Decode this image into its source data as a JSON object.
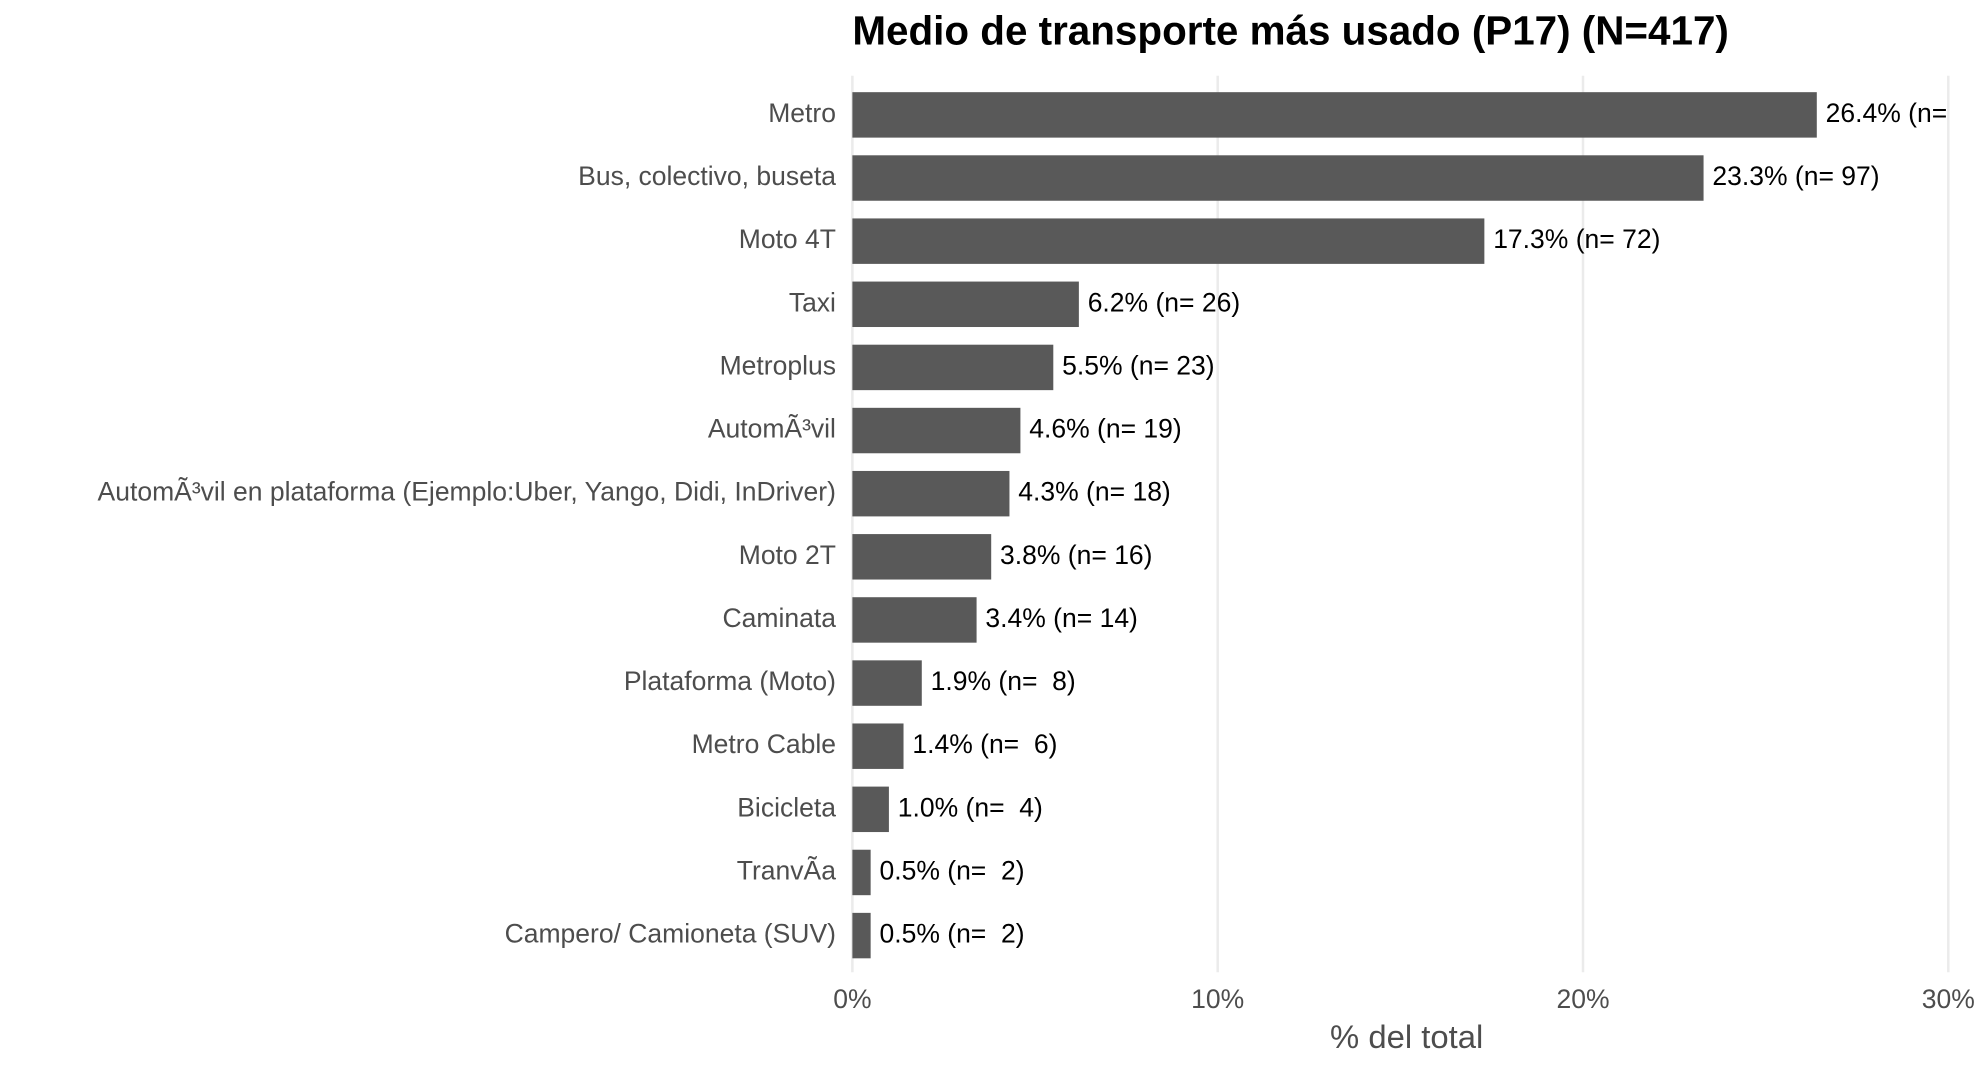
{
  "chart_data": {
    "type": "bar",
    "orientation": "horizontal",
    "title": "Medio de transporte más usado (P17) (N=417)",
    "x_label": "% del total",
    "categories": [
      "Metro",
      "Bus, colectivo, buseta",
      "Moto 4T",
      "Taxi",
      "Metroplus",
      "AutomÃ³vil",
      "AutomÃ³vil en plataforma (Ejemplo:Uber, Yango, Didi, InDriver)",
      "Moto 2T",
      "Caminata",
      "Plataforma (Moto)",
      "Metro Cable",
      "Bicicleta",
      "TranvÃa",
      "Campero/ Camioneta (SUV)"
    ],
    "values": [
      26.4,
      23.3,
      17.3,
      6.2,
      5.5,
      4.6,
      4.3,
      3.8,
      3.4,
      1.9,
      1.4,
      1.0,
      0.5,
      0.5
    ],
    "value_labels": [
      "26.4% (n=",
      "23.3% (n= 97)",
      "17.3% (n= 72)",
      "6.2% (n= 26)",
      "5.5% (n= 23)",
      "4.6% (n= 19)",
      "4.3% (n= 18)",
      "3.8% (n= 16)",
      "3.4% (n= 14)",
      "1.9% (n=  8)",
      "1.4% (n=  6)",
      "1.0% (n=  4)",
      "0.5% (n=  2)",
      "0.5% (n=  2)"
    ],
    "color": "#595959",
    "xlim": [
      0,
      30
    ],
    "xticks": [
      {
        "value": 0,
        "label": "0%"
      },
      {
        "value": 10,
        "label": "10%"
      },
      {
        "value": 20,
        "label": "20%"
      },
      {
        "value": 30,
        "label": "30%"
      }
    ],
    "grid": true
  }
}
